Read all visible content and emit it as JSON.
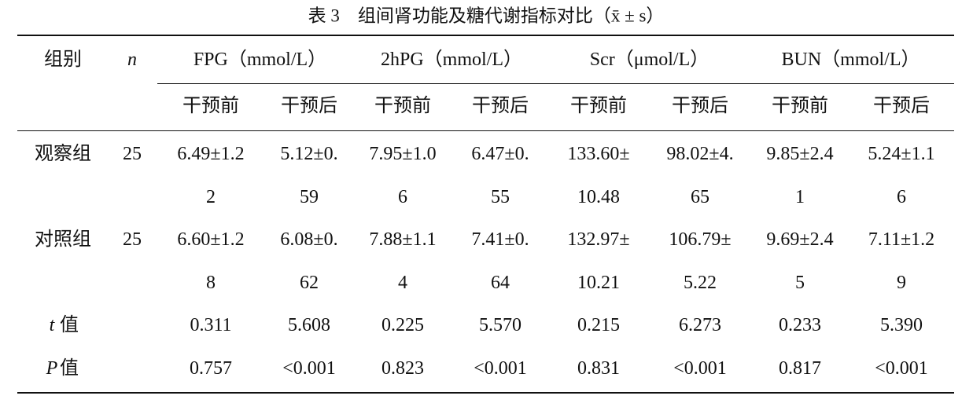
{
  "title": "表 3　组间肾功能及糖代谢指标对比（x̄ ± s）",
  "table": {
    "header": {
      "group": "组别",
      "n": "n",
      "measures": [
        {
          "name": "FPG（mmol/L）",
          "sub": [
            "干预前",
            "干预后"
          ]
        },
        {
          "name": "2hPG（mmol/L）",
          "sub": [
            "干预前",
            "干预后"
          ]
        },
        {
          "name": "Scr（μmol/L）",
          "sub": [
            "干预前",
            "干预后"
          ]
        },
        {
          "name": "BUN（mmol/L）",
          "sub": [
            "干预前",
            "干预后"
          ]
        }
      ]
    },
    "rows": [
      {
        "label": "观察组",
        "n": 25,
        "cells": [
          [
            "6.49±1.2",
            "2"
          ],
          [
            "5.12±0.",
            "59"
          ],
          [
            "7.95±1.0",
            "6"
          ],
          [
            "6.47±0.",
            "55"
          ],
          [
            "133.60±",
            "10.48"
          ],
          [
            "98.02±4.",
            "65"
          ],
          [
            "9.85±2.4",
            "1"
          ],
          [
            "5.24±1.1",
            "6"
          ]
        ]
      },
      {
        "label": "对照组",
        "n": 25,
        "cells": [
          [
            "6.60±1.2",
            "8"
          ],
          [
            "6.08±0.",
            "62"
          ],
          [
            "7.88±1.1",
            "4"
          ],
          [
            "7.41±0.",
            "64"
          ],
          [
            "132.97±",
            "10.21"
          ],
          [
            "106.79±",
            "5.22"
          ],
          [
            "9.69±2.4",
            "5"
          ],
          [
            "7.11±1.2",
            "9"
          ]
        ]
      },
      {
        "symbol": "t",
        "label": "值",
        "cells": [
          [
            "0.311"
          ],
          [
            "5.608"
          ],
          [
            "0.225"
          ],
          [
            "5.570"
          ],
          [
            "0.215"
          ],
          [
            "6.273"
          ],
          [
            "0.233"
          ],
          [
            "5.390"
          ]
        ]
      },
      {
        "symbol": "P",
        "label": "值",
        "cells": [
          [
            "0.757"
          ],
          [
            "<0.001"
          ],
          [
            "0.823"
          ],
          [
            "<0.001"
          ],
          [
            "0.831"
          ],
          [
            "<0.001"
          ],
          [
            "0.817"
          ],
          [
            "<0.001"
          ]
        ]
      }
    ]
  }
}
